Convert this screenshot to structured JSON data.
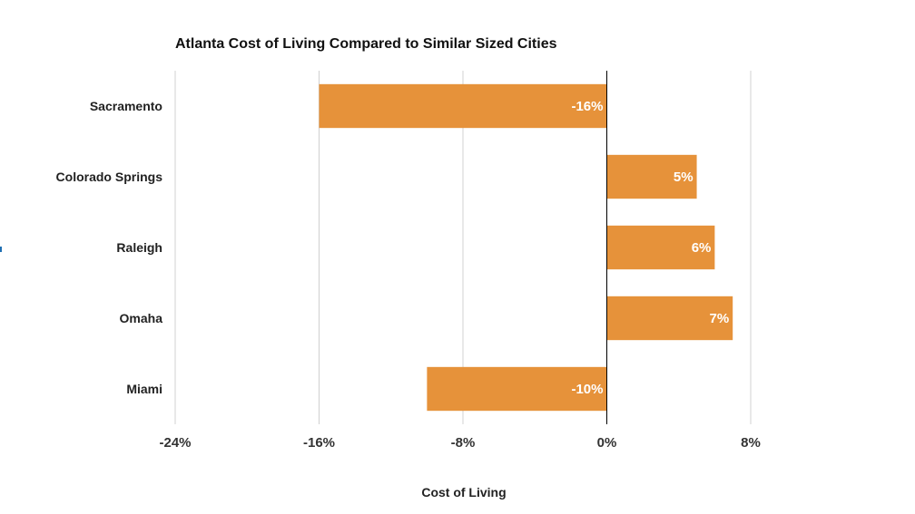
{
  "chart_data": {
    "type": "bar",
    "orientation": "horizontal",
    "title": "Atlanta Cost of Living Compared to Similar Sized Cities",
    "xlabel": "Cost of Living",
    "ylabel": "",
    "categories": [
      "Sacramento",
      "Colorado Springs",
      "Raleigh",
      "Omaha",
      "Miami"
    ],
    "values": [
      -16,
      5,
      6,
      7,
      -10
    ],
    "data_labels": [
      "-16%",
      "5%",
      "6%",
      "7%",
      "-10%"
    ],
    "xlim": [
      -24,
      8
    ],
    "ticks": [
      -24,
      -16,
      -8,
      0,
      8
    ],
    "tick_labels": [
      "-24%",
      "-16%",
      "-8%",
      "0%",
      "8%"
    ],
    "grid": "vertical",
    "legend": "none",
    "bar_color": "#E6923A"
  }
}
